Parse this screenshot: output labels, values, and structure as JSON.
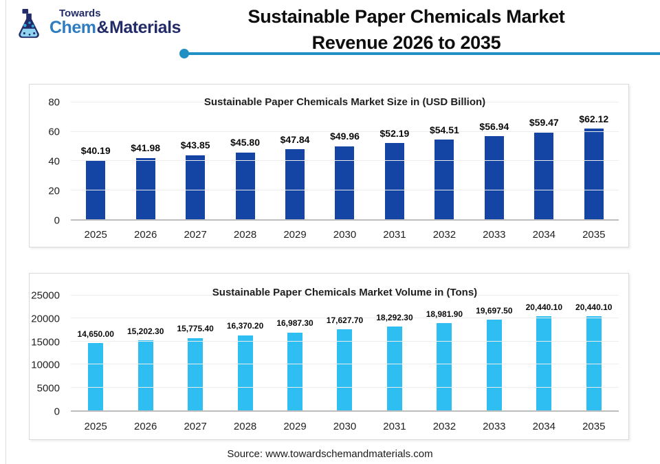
{
  "header": {
    "logo": {
      "top": "Towards",
      "brand_left": "Chem",
      "brand_amp": "&",
      "brand_right": "Materials"
    },
    "title_line1": "Sustainable Paper Chemicals Market",
    "title_line2": "Revenue 2026 to 2035"
  },
  "colors": {
    "size_bar": "#1545a4",
    "volume_bar": "#2ebef2",
    "divider": "#1f8fc4",
    "logo_navy": "#222c68",
    "logo_blue": "#2e7cc2"
  },
  "chart_data": [
    {
      "type": "bar",
      "title": "Sustainable Paper Chemicals Market Size in (USD Billion)",
      "categories": [
        "2025",
        "2026",
        "2027",
        "2028",
        "2029",
        "2030",
        "2031",
        "2032",
        "2033",
        "2034",
        "2035"
      ],
      "values": [
        40.19,
        41.98,
        43.85,
        45.8,
        47.84,
        49.96,
        52.19,
        54.51,
        56.94,
        59.47,
        62.12
      ],
      "labels": [
        "$40.19",
        "$41.98",
        "$43.85",
        "$45.80",
        "$47.84",
        "$49.96",
        "$52.19",
        "$54.51",
        "$56.94",
        "$59.47",
        "$62.12"
      ],
      "xlabel": "",
      "ylabel": "",
      "ylim": [
        0,
        80
      ],
      "yticks": [
        0,
        20,
        40,
        60,
        80
      ],
      "grid": true,
      "legend": "none",
      "bar_color": "#1545a4"
    },
    {
      "type": "bar",
      "title": "Sustainable Paper Chemicals Market Volume in (Tons)",
      "categories": [
        "2025",
        "2026",
        "2027",
        "2028",
        "2029",
        "2030",
        "2031",
        "2032",
        "2033",
        "2034",
        "2035"
      ],
      "values": [
        14650.0,
        15202.3,
        15775.4,
        16370.2,
        16987.3,
        17627.7,
        18292.3,
        18981.9,
        19697.5,
        20440.1,
        20440.1
      ],
      "labels": [
        "14,650.00",
        "15,202.30",
        "15,775.40",
        "16,370.20",
        "16,987.30",
        "17,627.70",
        "18,292.30",
        "18,981.90",
        "19,697.50",
        "20,440.10",
        "20,440.10"
      ],
      "xlabel": "",
      "ylabel": "",
      "ylim": [
        0,
        25000
      ],
      "yticks": [
        0,
        5000,
        10000,
        15000,
        20000,
        25000
      ],
      "grid": true,
      "legend": "none",
      "bar_color": "#2ebef2"
    }
  ],
  "footer": {
    "source": "Source: www.towardschemandmaterials.com"
  }
}
